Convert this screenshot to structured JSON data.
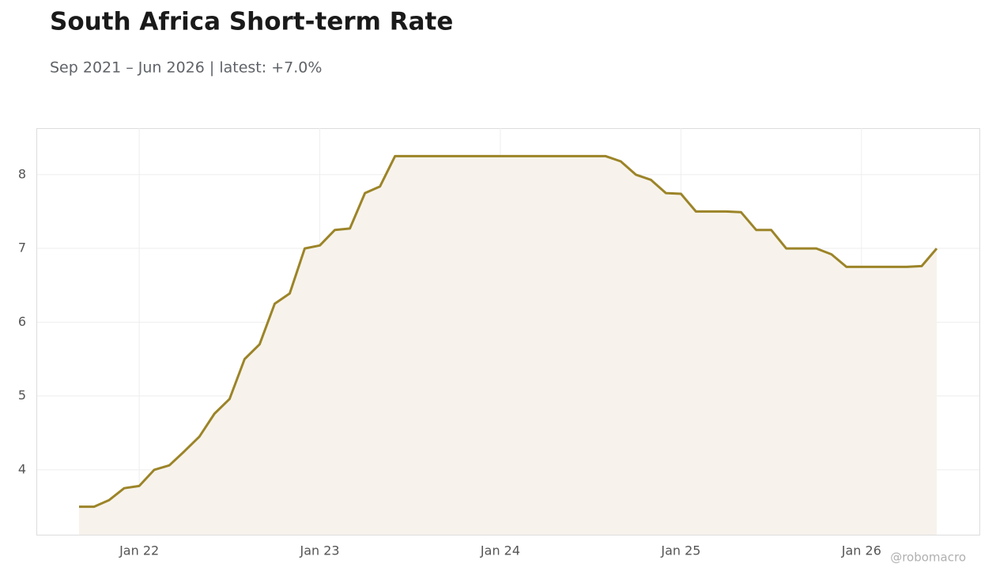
{
  "chart_data": {
    "type": "area",
    "title": "South Africa Short-term Rate",
    "subtitle": "Sep 2021 – Jun 2026 | latest: +7.0%",
    "watermark": "@robomacro",
    "x": [
      "2021-09",
      "2021-10",
      "2021-11",
      "2021-12",
      "2022-01",
      "2022-02",
      "2022-03",
      "2022-04",
      "2022-05",
      "2022-06",
      "2022-07",
      "2022-08",
      "2022-09",
      "2022-10",
      "2022-11",
      "2022-12",
      "2023-01",
      "2023-02",
      "2023-03",
      "2023-04",
      "2023-05",
      "2023-06",
      "2023-07",
      "2023-08",
      "2023-09",
      "2023-10",
      "2023-11",
      "2023-12",
      "2024-01",
      "2024-02",
      "2024-03",
      "2024-04",
      "2024-05",
      "2024-06",
      "2024-07",
      "2024-08",
      "2024-09",
      "2024-10",
      "2024-11",
      "2024-12",
      "2025-01",
      "2025-02",
      "2025-03",
      "2025-04",
      "2025-05",
      "2025-06",
      "2025-07",
      "2025-08",
      "2025-09",
      "2025-10",
      "2025-11",
      "2025-12",
      "2026-01",
      "2026-02",
      "2026-03",
      "2026-04",
      "2026-05",
      "2026-06"
    ],
    "series": [
      {
        "name": "Short-term Rate",
        "color": "#9c8428",
        "fill": "#f7f3ec",
        "values": [
          3.5,
          3.5,
          3.59,
          3.75,
          3.78,
          4.0,
          4.06,
          4.25,
          4.45,
          4.76,
          4.96,
          5.5,
          5.7,
          6.25,
          6.39,
          7.0,
          7.04,
          7.25,
          7.27,
          7.75,
          7.84,
          8.25,
          8.25,
          8.25,
          8.25,
          8.25,
          8.25,
          8.25,
          8.25,
          8.25,
          8.25,
          8.25,
          8.25,
          8.25,
          8.25,
          8.25,
          8.18,
          8.0,
          7.93,
          7.75,
          7.74,
          7.5,
          7.5,
          7.5,
          7.49,
          7.25,
          7.25,
          7.0,
          7.0,
          7.0,
          6.92,
          6.75,
          6.75,
          6.75,
          6.75,
          6.75,
          6.76,
          7.0
        ]
      }
    ],
    "xticks": [
      {
        "value": "2022-01",
        "label": "Jan 22"
      },
      {
        "value": "2023-01",
        "label": "Jan 23"
      },
      {
        "value": "2024-01",
        "label": "Jan 24"
      },
      {
        "value": "2025-01",
        "label": "Jan 25"
      },
      {
        "value": "2026-01",
        "label": "Jan 26"
      }
    ],
    "ylim": [
      3.12,
      8.63
    ],
    "yticks": [
      4,
      5,
      6,
      7,
      8
    ],
    "grid": true
  }
}
